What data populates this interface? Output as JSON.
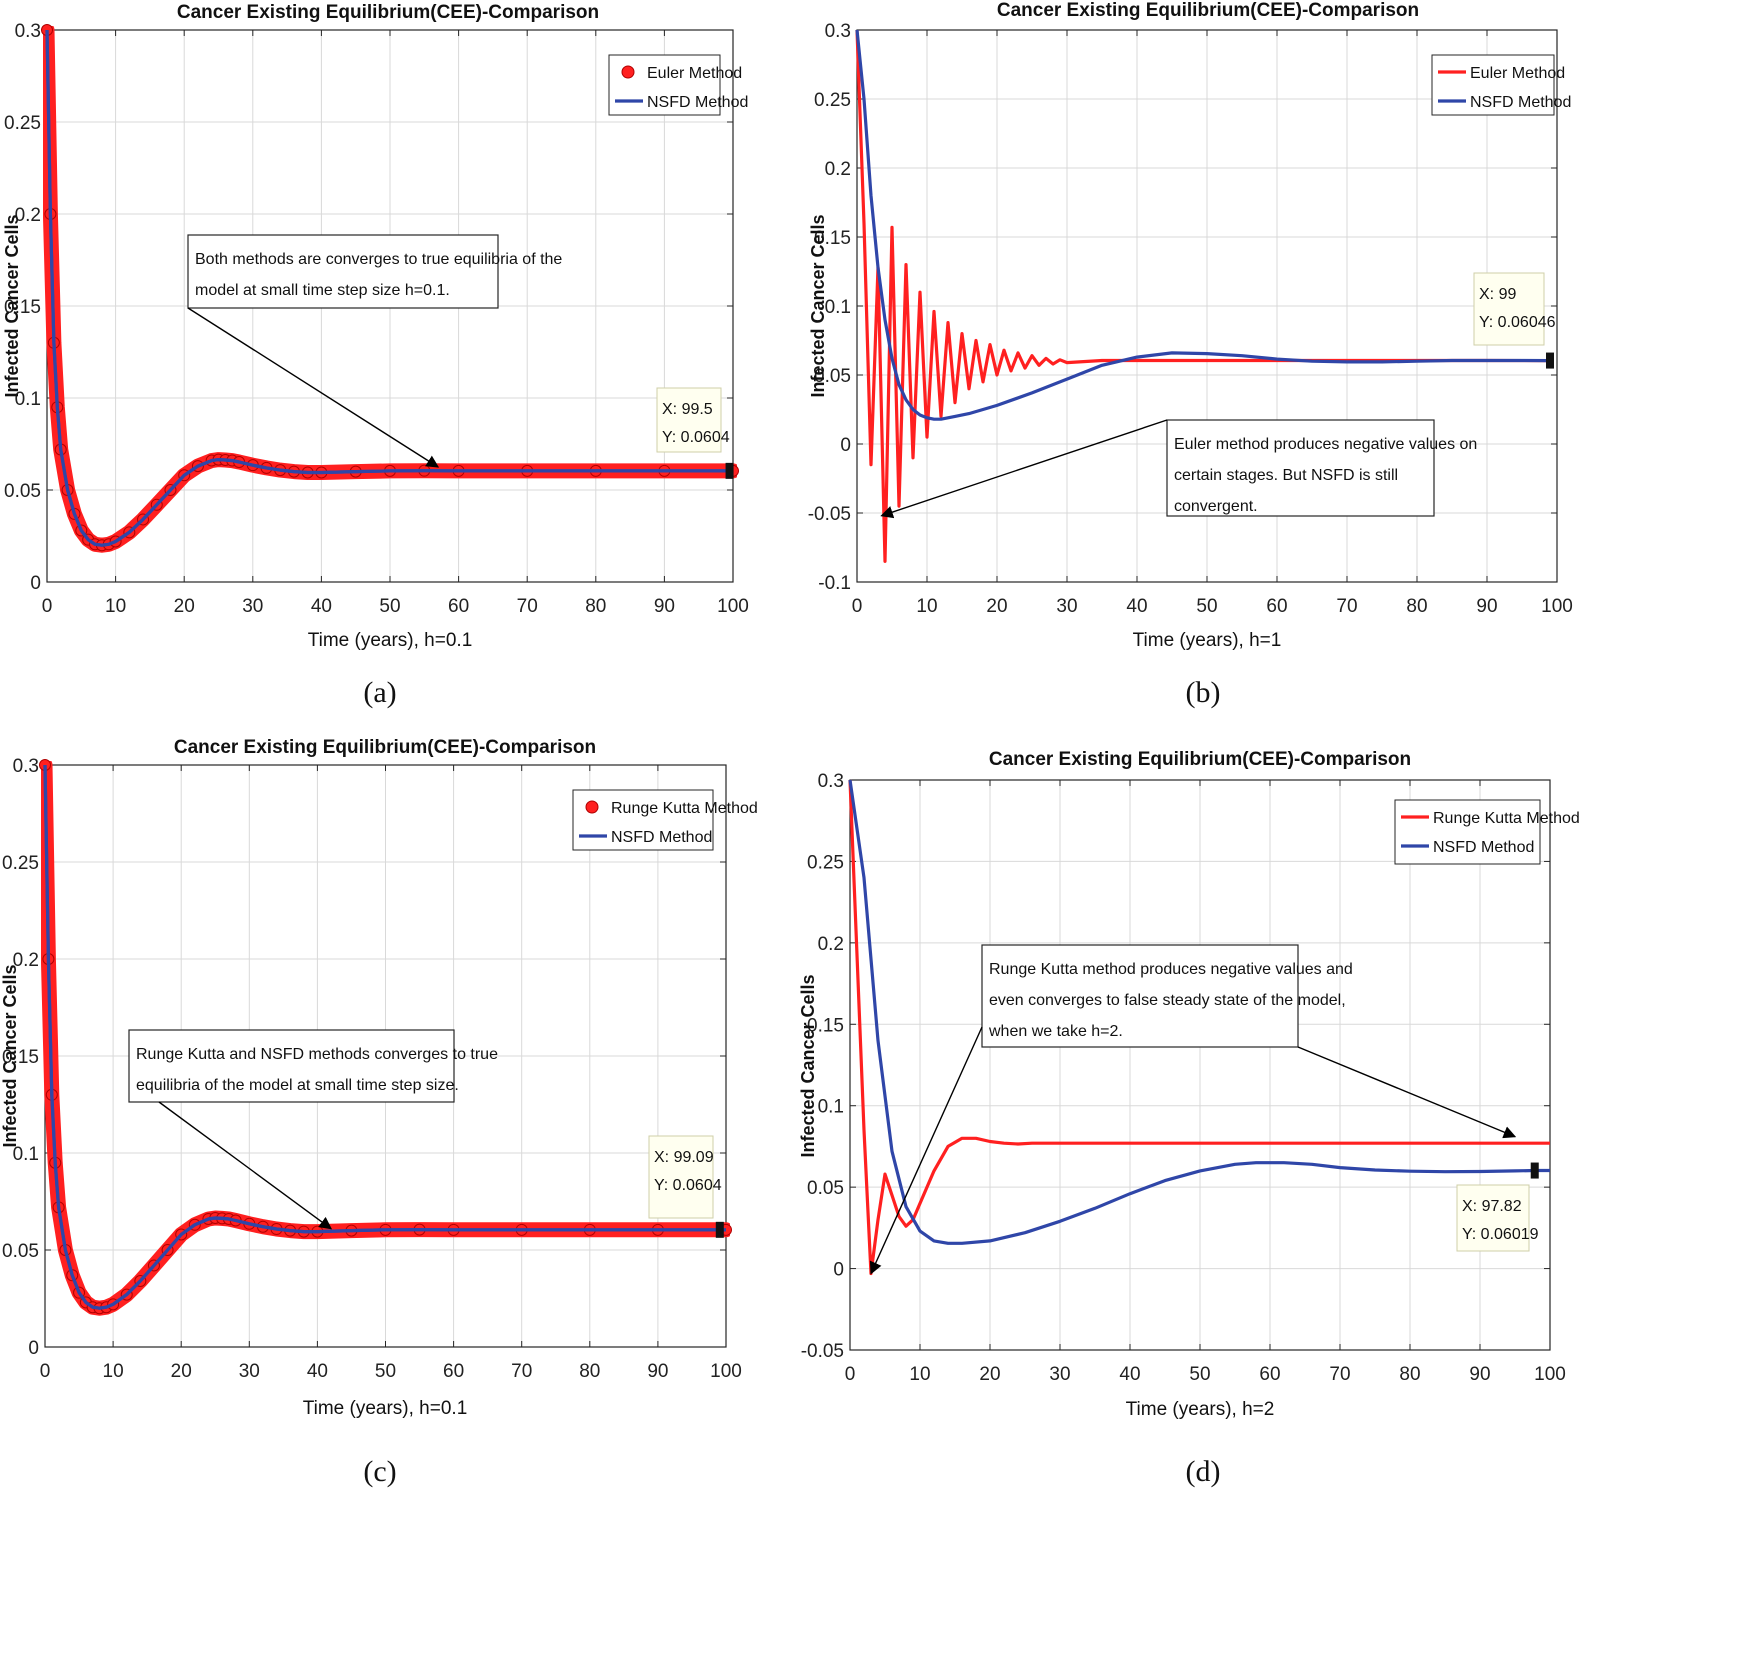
{
  "chart_data": [
    {
      "type": "line",
      "panel_label": "(a)",
      "title": "Cancer Existing Equilibrium(CEE)-Comparison",
      "xlabel": "Time (years), h=0.1",
      "ylabel": "Infected Cancer Cells",
      "xlim": [
        0,
        100
      ],
      "ylim": [
        0,
        0.3
      ],
      "xticks": [
        0,
        10,
        20,
        30,
        40,
        50,
        60,
        70,
        80,
        90,
        100
      ],
      "yticks": [
        0,
        0.05,
        0.1,
        0.15,
        0.2,
        0.25,
        0.3
      ],
      "ytick_labels": [
        "0",
        "0.05",
        "0.1",
        "0.15",
        "0.2",
        "0.25",
        "0.3"
      ],
      "grid": true,
      "legend_position": "top-right",
      "series": [
        {
          "name": "Euler Method",
          "color": "#ff2020",
          "style": "markers",
          "x": [
            0,
            0.5,
            1,
            1.5,
            2,
            3,
            4,
            5,
            6,
            7,
            8,
            9,
            10,
            12,
            14,
            16,
            18,
            20,
            22,
            24,
            25,
            26,
            27,
            28,
            30,
            32,
            34,
            36,
            38,
            40,
            45,
            50,
            55,
            60,
            70,
            80,
            90,
            100
          ],
          "y": [
            0.3,
            0.2,
            0.13,
            0.095,
            0.072,
            0.05,
            0.037,
            0.028,
            0.023,
            0.0205,
            0.02,
            0.0205,
            0.022,
            0.027,
            0.034,
            0.042,
            0.05,
            0.058,
            0.063,
            0.066,
            0.0665,
            0.0663,
            0.066,
            0.0652,
            0.0635,
            0.062,
            0.0608,
            0.06,
            0.0595,
            0.0595,
            0.06,
            0.0604,
            0.0605,
            0.0604,
            0.0604,
            0.0604,
            0.0604,
            0.0604
          ]
        },
        {
          "name": "NSFD Method",
          "color": "#2f46a8",
          "style": "line",
          "x": [
            0,
            0.5,
            1,
            1.5,
            2,
            3,
            4,
            5,
            6,
            7,
            8,
            9,
            10,
            12,
            14,
            16,
            18,
            20,
            22,
            24,
            25,
            26,
            27,
            28,
            30,
            32,
            34,
            36,
            38,
            40,
            45,
            50,
            55,
            60,
            70,
            80,
            90,
            100
          ],
          "y": [
            0.3,
            0.2,
            0.13,
            0.095,
            0.072,
            0.05,
            0.037,
            0.028,
            0.023,
            0.0205,
            0.02,
            0.0205,
            0.022,
            0.027,
            0.034,
            0.042,
            0.05,
            0.058,
            0.063,
            0.066,
            0.0665,
            0.0663,
            0.066,
            0.0652,
            0.0635,
            0.062,
            0.0608,
            0.06,
            0.0595,
            0.0595,
            0.06,
            0.0604,
            0.0605,
            0.0604,
            0.0604,
            0.0604,
            0.0604,
            0.0604
          ]
        }
      ],
      "annotation": {
        "text": [
          "Both methods are converges to true equilibria of the",
          "model at small time step size h=0.1."
        ],
        "arrow_to": [
          57,
          0.0625
        ]
      },
      "datatip": {
        "x": 99.5,
        "y": 0.0604,
        "lines": [
          "X: 99.5",
          "Y: 0.0604"
        ]
      }
    },
    {
      "type": "line",
      "panel_label": "(b)",
      "title": "Cancer Existing Equilibrium(CEE)-Comparison",
      "xlabel": "Time (years), h=1",
      "ylabel": "Infected Cancer Cells",
      "xlim": [
        0,
        100
      ],
      "ylim": [
        -0.1,
        0.3
      ],
      "xticks": [
        0,
        10,
        20,
        30,
        40,
        50,
        60,
        70,
        80,
        90,
        100
      ],
      "yticks": [
        -0.1,
        -0.05,
        0,
        0.05,
        0.1,
        0.15,
        0.2,
        0.25,
        0.3
      ],
      "ytick_labels": [
        "-0.1",
        "-0.05",
        "0",
        "0.05",
        "0.1",
        "0.15",
        "0.2",
        "0.25",
        "0.3"
      ],
      "grid": true,
      "legend_position": "top-right",
      "series": [
        {
          "name": "Euler Method",
          "color": "#ff2020",
          "style": "line",
          "x": [
            0,
            1,
            2,
            3,
            4,
            5,
            6,
            7,
            8,
            9,
            10,
            11,
            12,
            13,
            14,
            15,
            16,
            17,
            18,
            19,
            20,
            21,
            22,
            23,
            24,
            25,
            26,
            27,
            28,
            29,
            30,
            35,
            40,
            50,
            60,
            70,
            80,
            90,
            99
          ],
          "y": [
            0.3,
            0.16,
            -0.015,
            0.128,
            -0.085,
            0.157,
            -0.045,
            0.13,
            -0.01,
            0.11,
            0.005,
            0.096,
            0.02,
            0.088,
            0.03,
            0.08,
            0.04,
            0.075,
            0.045,
            0.072,
            0.05,
            0.068,
            0.053,
            0.066,
            0.055,
            0.064,
            0.057,
            0.062,
            0.058,
            0.061,
            0.059,
            0.0605,
            0.0605,
            0.0605,
            0.0605,
            0.0605,
            0.0605,
            0.0605,
            0.06046
          ]
        },
        {
          "name": "NSFD Method",
          "color": "#2f46a8",
          "style": "line",
          "x": [
            0,
            1,
            2,
            3,
            4,
            5,
            6,
            7,
            8,
            9,
            10,
            11,
            12,
            14,
            16,
            18,
            20,
            25,
            30,
            35,
            40,
            45,
            50,
            55,
            60,
            65,
            70,
            75,
            80,
            85,
            90,
            95,
            99
          ],
          "y": [
            0.3,
            0.25,
            0.18,
            0.128,
            0.09,
            0.062,
            0.043,
            0.032,
            0.025,
            0.021,
            0.019,
            0.018,
            0.018,
            0.02,
            0.022,
            0.025,
            0.028,
            0.037,
            0.047,
            0.057,
            0.063,
            0.066,
            0.0655,
            0.064,
            0.0615,
            0.06,
            0.0595,
            0.0595,
            0.06,
            0.0605,
            0.0605,
            0.0605,
            0.06046
          ]
        }
      ],
      "annotation": {
        "text": [
          "Euler method produces negative values on",
          "certain stages. But NSFD is still",
          "convergent."
        ],
        "arrow_to": [
          3.5,
          -0.052
        ]
      },
      "datatip": {
        "x": 99,
        "y": 0.06046,
        "lines": [
          "X: 99",
          "Y: 0.06046"
        ]
      }
    },
    {
      "type": "line",
      "panel_label": "(c)",
      "title": "Cancer Existing Equilibrium(CEE)-Comparison",
      "xlabel": "Time (years), h=0.1",
      "ylabel": "Infected Cancer Cells",
      "xlim": [
        0,
        100
      ],
      "ylim": [
        0,
        0.3
      ],
      "xticks": [
        0,
        10,
        20,
        30,
        40,
        50,
        60,
        70,
        80,
        90,
        100
      ],
      "yticks": [
        0,
        0.05,
        0.1,
        0.15,
        0.2,
        0.25,
        0.3
      ],
      "ytick_labels": [
        "0",
        "0.05",
        "0.1",
        "0.15",
        "0.2",
        "0.25",
        "0.3"
      ],
      "grid": true,
      "legend_position": "top-right",
      "series": [
        {
          "name": "Runge Kutta Method",
          "color": "#ff2020",
          "style": "markers",
          "x": [
            0,
            0.5,
            1,
            1.5,
            2,
            3,
            4,
            5,
            6,
            7,
            8,
            9,
            10,
            12,
            14,
            16,
            18,
            20,
            22,
            24,
            25,
            26,
            27,
            28,
            30,
            32,
            34,
            36,
            38,
            40,
            45,
            50,
            55,
            60,
            70,
            80,
            90,
            100
          ],
          "y": [
            0.3,
            0.2,
            0.13,
            0.095,
            0.072,
            0.05,
            0.037,
            0.028,
            0.023,
            0.0205,
            0.02,
            0.0205,
            0.022,
            0.027,
            0.034,
            0.042,
            0.05,
            0.058,
            0.063,
            0.066,
            0.0665,
            0.0663,
            0.066,
            0.0652,
            0.0635,
            0.062,
            0.0608,
            0.06,
            0.0595,
            0.0595,
            0.06,
            0.0604,
            0.0605,
            0.0604,
            0.0604,
            0.0604,
            0.0604,
            0.0604
          ]
        },
        {
          "name": "NSFD Method",
          "color": "#2f46a8",
          "style": "line",
          "x": [
            0,
            0.5,
            1,
            1.5,
            2,
            3,
            4,
            5,
            6,
            7,
            8,
            9,
            10,
            12,
            14,
            16,
            18,
            20,
            22,
            24,
            25,
            26,
            27,
            28,
            30,
            32,
            34,
            36,
            38,
            40,
            45,
            50,
            55,
            60,
            70,
            80,
            90,
            100
          ],
          "y": [
            0.3,
            0.2,
            0.13,
            0.095,
            0.072,
            0.05,
            0.037,
            0.028,
            0.023,
            0.0205,
            0.02,
            0.0205,
            0.022,
            0.027,
            0.034,
            0.042,
            0.05,
            0.058,
            0.063,
            0.066,
            0.0665,
            0.0663,
            0.066,
            0.0652,
            0.0635,
            0.062,
            0.0608,
            0.06,
            0.0595,
            0.0595,
            0.06,
            0.0604,
            0.0605,
            0.0604,
            0.0604,
            0.0604,
            0.0604,
            0.0604
          ]
        }
      ],
      "annotation": {
        "text": [
          "Runge Kutta and NSFD methods converges to true",
          "equilibria of the model at small time step size."
        ],
        "arrow_to": [
          42,
          0.061
        ]
      },
      "datatip": {
        "x": 99.09,
        "y": 0.0604,
        "lines": [
          "X: 99.09",
          "Y: 0.0604"
        ]
      }
    },
    {
      "type": "line",
      "panel_label": "(d)",
      "title": "Cancer Existing Equilibrium(CEE)-Comparison",
      "xlabel": "Time (years), h=2",
      "ylabel": "Infected Cancer Cells",
      "xlim": [
        0,
        100
      ],
      "ylim": [
        -0.05,
        0.3
      ],
      "xticks": [
        0,
        10,
        20,
        30,
        40,
        50,
        60,
        70,
        80,
        90,
        100
      ],
      "yticks": [
        -0.05,
        0,
        0.05,
        0.1,
        0.15,
        0.2,
        0.25,
        0.3
      ],
      "ytick_labels": [
        "-0.05",
        "0",
        "0.05",
        "0.1",
        "0.15",
        "0.2",
        "0.25",
        "0.3"
      ],
      "grid": true,
      "legend_position": "top-right",
      "series": [
        {
          "name": "Runge Kutta Method",
          "color": "#ff2020",
          "style": "line",
          "x": [
            0,
            2,
            3,
            4,
            5,
            6,
            7,
            8,
            9,
            10,
            12,
            14,
            16,
            18,
            20,
            22,
            24,
            26,
            30,
            40,
            50,
            60,
            70,
            80,
            90,
            100
          ],
          "y": [
            0.3,
            0.085,
            -0.003,
            0.03,
            0.058,
            0.045,
            0.032,
            0.026,
            0.03,
            0.04,
            0.06,
            0.075,
            0.08,
            0.08,
            0.078,
            0.077,
            0.0765,
            0.077,
            0.077,
            0.077,
            0.077,
            0.077,
            0.077,
            0.077,
            0.077,
            0.077
          ]
        },
        {
          "name": "NSFD Method",
          "color": "#2f46a8",
          "style": "line",
          "x": [
            0,
            2,
            4,
            6,
            8,
            10,
            12,
            14,
            16,
            20,
            25,
            30,
            35,
            40,
            45,
            50,
            55,
            58,
            62,
            66,
            70,
            75,
            80,
            85,
            90,
            95,
            97.82,
            100
          ],
          "y": [
            0.3,
            0.24,
            0.14,
            0.072,
            0.038,
            0.023,
            0.017,
            0.0155,
            0.0155,
            0.017,
            0.022,
            0.029,
            0.037,
            0.046,
            0.054,
            0.06,
            0.064,
            0.065,
            0.065,
            0.064,
            0.062,
            0.0605,
            0.0598,
            0.0595,
            0.0596,
            0.06,
            0.06019,
            0.0602
          ]
        }
      ],
      "annotation": {
        "text": [
          "Runge Kutta method produces negative values and",
          "even converges to false steady state of the model,",
          "when we take h=2."
        ],
        "arrow_to": [
          [
            3,
            -0.003
          ],
          [
            95,
            0.081
          ]
        ]
      },
      "datatip": {
        "x": 97.82,
        "y": 0.06019,
        "lines": [
          "X: 97.82",
          "Y: 0.06019"
        ]
      }
    }
  ]
}
